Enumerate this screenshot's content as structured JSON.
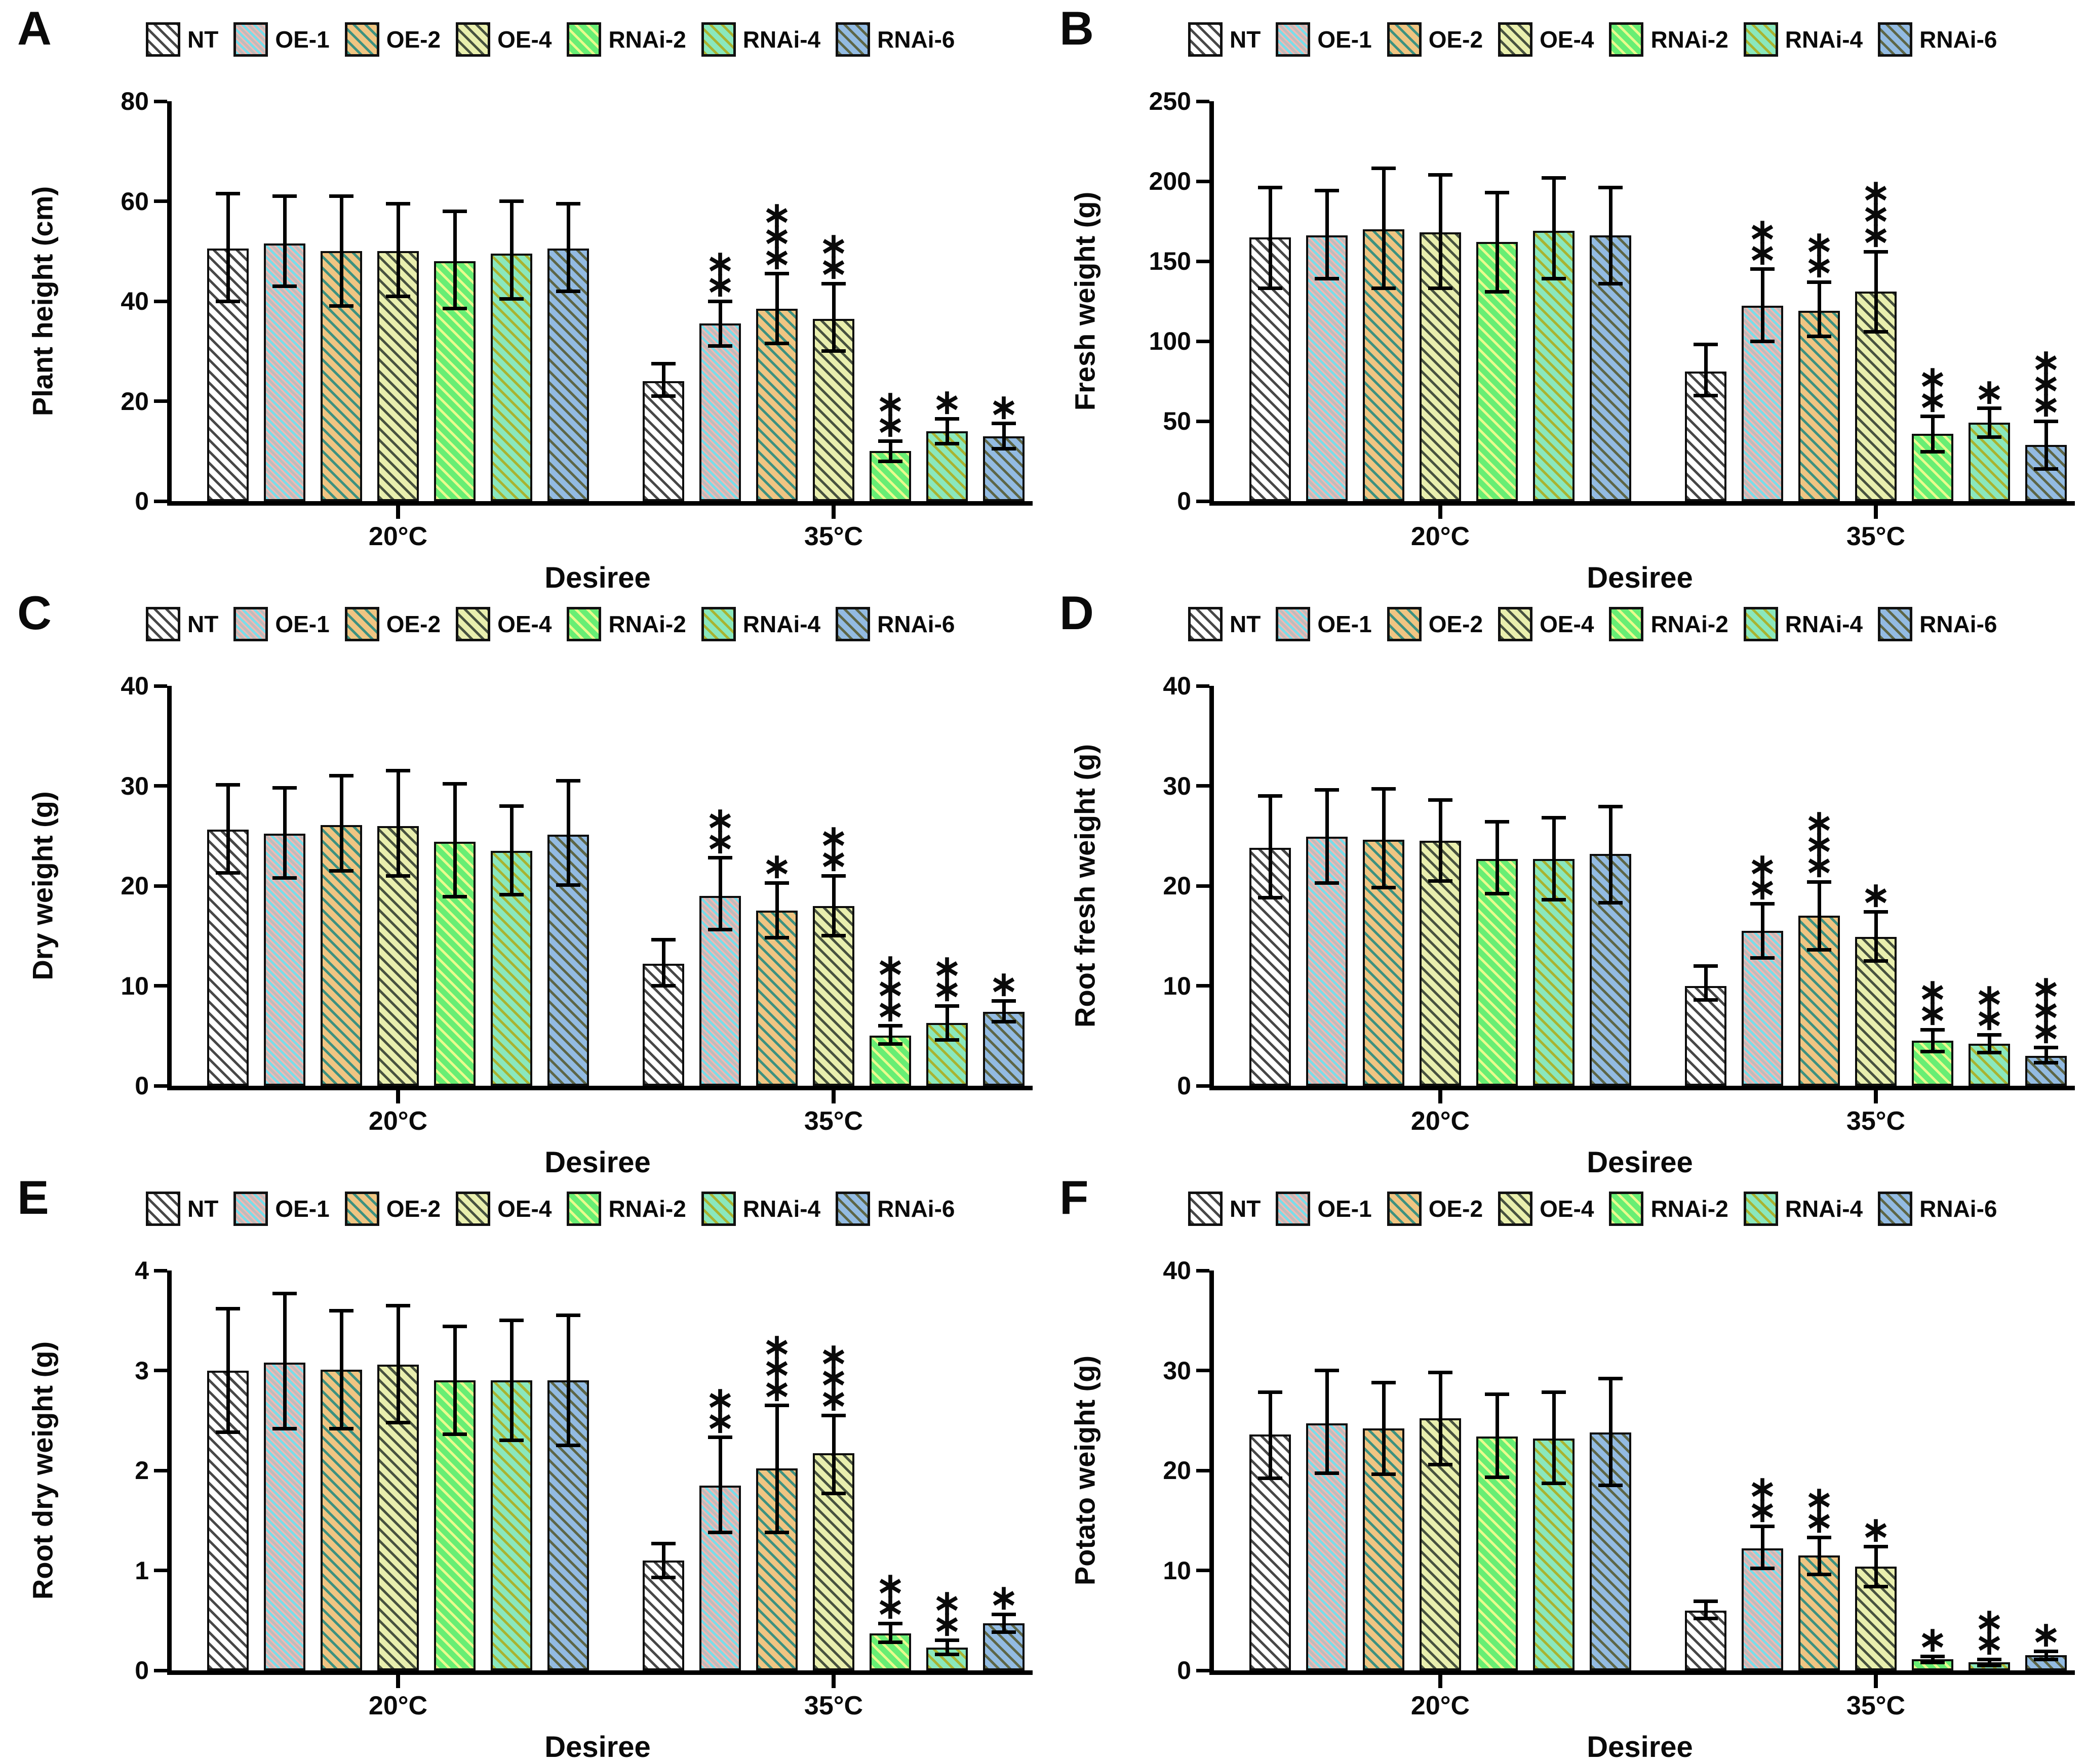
{
  "page": {
    "background": "#ffffff"
  },
  "legend": {
    "items": [
      {
        "label": "NT",
        "base": "#ffffff",
        "stripe": "#474747",
        "stripe2": null
      },
      {
        "label": "OE-1",
        "base": "#f3b8b3",
        "stripe": "#7adde9",
        "stripe2": "#bdbdbd"
      },
      {
        "label": "OE-2",
        "base": "#f0c582",
        "stripe": "#3d9180",
        "stripe2": null
      },
      {
        "label": "OE-4",
        "base": "#e9efae",
        "stripe": "#48523f",
        "stripe2": null
      },
      {
        "label": "RNAi-2",
        "base": "#68ee74",
        "stripe": "#e9fb8d",
        "stripe2": null
      },
      {
        "label": "RNAi-4",
        "base": "#8ae8bd",
        "stripe": "#a9b331",
        "stripe2": null
      },
      {
        "label": "RNAi-6",
        "base": "#93bbe2",
        "stripe": "#5d6647",
        "stripe2": null
      }
    ]
  },
  "chart_data": [
    {
      "type": "bar",
      "panel": "A",
      "ylabel": "Plant height (cm)",
      "xlabel": "Desiree",
      "ylim": [
        0,
        80
      ],
      "yticks": [
        0,
        20,
        40,
        60,
        80
      ],
      "categories": [
        "20°C",
        "35°C"
      ],
      "grid": false,
      "legend_position": "top",
      "series": [
        {
          "name": "NT",
          "values": [
            50.5,
            24.0
          ],
          "err_low": [
            40.0,
            21.0
          ],
          "err_high": [
            61.5,
            27.5
          ],
          "sig": [
            "",
            ""
          ]
        },
        {
          "name": "OE-1",
          "values": [
            51.5,
            35.5
          ],
          "err_low": [
            43.0,
            31.0
          ],
          "err_high": [
            61.0,
            40.0
          ],
          "sig": [
            "",
            "**"
          ]
        },
        {
          "name": "OE-2",
          "values": [
            50.0,
            38.5
          ],
          "err_low": [
            39.0,
            31.5
          ],
          "err_high": [
            61.0,
            45.5
          ],
          "sig": [
            "",
            "***"
          ]
        },
        {
          "name": "OE-4",
          "values": [
            50.0,
            36.5
          ],
          "err_low": [
            41.0,
            30.0
          ],
          "err_high": [
            59.5,
            43.5
          ],
          "sig": [
            "",
            "**"
          ]
        },
        {
          "name": "RNAi-2",
          "values": [
            48.0,
            10.0
          ],
          "err_low": [
            38.5,
            8.0
          ],
          "err_high": [
            58.0,
            12.0
          ],
          "sig": [
            "",
            "**"
          ]
        },
        {
          "name": "RNAi-4",
          "values": [
            49.5,
            14.0
          ],
          "err_low": [
            40.5,
            11.5
          ],
          "err_high": [
            60.0,
            16.5
          ],
          "sig": [
            "",
            "*"
          ]
        },
        {
          "name": "RNAi-6",
          "values": [
            50.5,
            13.0
          ],
          "err_low": [
            42.0,
            10.5
          ],
          "err_high": [
            59.5,
            15.5
          ],
          "sig": [
            "",
            "*"
          ]
        }
      ]
    },
    {
      "type": "bar",
      "panel": "B",
      "ylabel": "Fresh weight (g)",
      "xlabel": "Desiree",
      "ylim": [
        0,
        250
      ],
      "yticks": [
        0,
        50,
        100,
        150,
        200,
        250
      ],
      "categories": [
        "20°C",
        "35°C"
      ],
      "grid": false,
      "legend_position": "top",
      "series": [
        {
          "name": "NT",
          "values": [
            165,
            81
          ],
          "err_low": [
            133,
            66
          ],
          "err_high": [
            196,
            98
          ],
          "sig": [
            "",
            ""
          ]
        },
        {
          "name": "OE-1",
          "values": [
            166,
            122
          ],
          "err_low": [
            139,
            100
          ],
          "err_high": [
            194,
            145
          ],
          "sig": [
            "",
            "**"
          ]
        },
        {
          "name": "OE-2",
          "values": [
            170,
            119
          ],
          "err_low": [
            133,
            103
          ],
          "err_high": [
            208,
            137
          ],
          "sig": [
            "",
            "**"
          ]
        },
        {
          "name": "OE-4",
          "values": [
            168,
            131
          ],
          "err_low": [
            133,
            106
          ],
          "err_high": [
            204,
            156
          ],
          "sig": [
            "",
            "***"
          ]
        },
        {
          "name": "RNAi-2",
          "values": [
            162,
            42
          ],
          "err_low": [
            131,
            31
          ],
          "err_high": [
            193,
            53
          ],
          "sig": [
            "",
            "**"
          ]
        },
        {
          "name": "RNAi-4",
          "values": [
            169,
            49
          ],
          "err_low": [
            139,
            40
          ],
          "err_high": [
            202,
            58
          ],
          "sig": [
            "",
            "*"
          ]
        },
        {
          "name": "RNAi-6",
          "values": [
            166,
            35
          ],
          "err_low": [
            136,
            20
          ],
          "err_high": [
            196,
            50
          ],
          "sig": [
            "",
            "***"
          ]
        }
      ]
    },
    {
      "type": "bar",
      "panel": "C",
      "ylabel": "Dry weight (g)",
      "xlabel": "Desiree",
      "ylim": [
        0,
        40
      ],
      "yticks": [
        0,
        10,
        20,
        30,
        40
      ],
      "categories": [
        "20°C",
        "35°C"
      ],
      "grid": false,
      "legend_position": "top",
      "series": [
        {
          "name": "NT",
          "values": [
            25.6,
            12.2
          ],
          "err_low": [
            21.3,
            10.0
          ],
          "err_high": [
            30.1,
            14.6
          ],
          "sig": [
            "",
            ""
          ]
        },
        {
          "name": "OE-1",
          "values": [
            25.2,
            19.0
          ],
          "err_low": [
            20.8,
            15.6
          ],
          "err_high": [
            29.8,
            22.8
          ],
          "sig": [
            "",
            "**"
          ]
        },
        {
          "name": "OE-2",
          "values": [
            26.1,
            17.5
          ],
          "err_low": [
            21.5,
            14.8
          ],
          "err_high": [
            31.0,
            20.3
          ],
          "sig": [
            "",
            "*"
          ]
        },
        {
          "name": "OE-4",
          "values": [
            26.0,
            18.0
          ],
          "err_low": [
            21.0,
            15.0
          ],
          "err_high": [
            31.5,
            21.0
          ],
          "sig": [
            "",
            "**"
          ]
        },
        {
          "name": "RNAi-2",
          "values": [
            24.4,
            5.0
          ],
          "err_low": [
            18.9,
            4.2
          ],
          "err_high": [
            30.2,
            6.0
          ],
          "sig": [
            "",
            "***"
          ]
        },
        {
          "name": "RNAi-4",
          "values": [
            23.5,
            6.3
          ],
          "err_low": [
            19.1,
            4.6
          ],
          "err_high": [
            28.0,
            8.0
          ],
          "sig": [
            "",
            "**"
          ]
        },
        {
          "name": "RNAi-6",
          "values": [
            25.1,
            7.4
          ],
          "err_low": [
            20.1,
            6.4
          ],
          "err_high": [
            30.5,
            8.5
          ],
          "sig": [
            "",
            "*"
          ]
        }
      ]
    },
    {
      "type": "bar",
      "panel": "D",
      "ylabel": "Root fresh weight (g)",
      "xlabel": "Desiree",
      "ylim": [
        0,
        40
      ],
      "yticks": [
        0,
        10,
        20,
        30,
        40
      ],
      "categories": [
        "20°C",
        "35°C"
      ],
      "grid": false,
      "legend_position": "top",
      "series": [
        {
          "name": "NT",
          "values": [
            23.8,
            10.0
          ],
          "err_low": [
            18.8,
            8.6
          ],
          "err_high": [
            29.0,
            12.0
          ],
          "sig": [
            "",
            ""
          ]
        },
        {
          "name": "OE-1",
          "values": [
            24.9,
            15.5
          ],
          "err_low": [
            20.3,
            12.8
          ],
          "err_high": [
            29.6,
            18.2
          ],
          "sig": [
            "",
            "**"
          ]
        },
        {
          "name": "OE-2",
          "values": [
            24.6,
            17.0
          ],
          "err_low": [
            19.8,
            13.6
          ],
          "err_high": [
            29.7,
            20.4
          ],
          "sig": [
            "",
            "***"
          ]
        },
        {
          "name": "OE-4",
          "values": [
            24.5,
            14.9
          ],
          "err_low": [
            20.5,
            12.5
          ],
          "err_high": [
            28.6,
            17.4
          ],
          "sig": [
            "",
            "*"
          ]
        },
        {
          "name": "RNAi-2",
          "values": [
            22.7,
            4.5
          ],
          "err_low": [
            19.2,
            3.4
          ],
          "err_high": [
            26.4,
            5.6
          ],
          "sig": [
            "",
            "**"
          ]
        },
        {
          "name": "RNAi-4",
          "values": [
            22.7,
            4.2
          ],
          "err_low": [
            18.6,
            3.3
          ],
          "err_high": [
            26.8,
            5.1
          ],
          "sig": [
            "",
            "**"
          ]
        },
        {
          "name": "RNAi-6",
          "values": [
            23.2,
            3.0
          ],
          "err_low": [
            18.3,
            2.3
          ],
          "err_high": [
            27.9,
            3.8
          ],
          "sig": [
            "",
            "***"
          ]
        }
      ]
    },
    {
      "type": "bar",
      "panel": "E",
      "ylabel": "Root dry weight (g)",
      "xlabel": "Desiree",
      "ylim": [
        0,
        4
      ],
      "yticks": [
        0,
        1,
        2,
        3,
        4
      ],
      "categories": [
        "20°C",
        "35°C"
      ],
      "grid": false,
      "legend_position": "top",
      "series": [
        {
          "name": "NT",
          "values": [
            3.0,
            1.1
          ],
          "err_low": [
            2.38,
            0.93
          ],
          "err_high": [
            3.62,
            1.27
          ],
          "sig": [
            "",
            ""
          ]
        },
        {
          "name": "OE-1",
          "values": [
            3.08,
            1.85
          ],
          "err_low": [
            2.42,
            1.38
          ],
          "err_high": [
            3.77,
            2.33
          ],
          "sig": [
            "",
            "**"
          ]
        },
        {
          "name": "OE-2",
          "values": [
            3.01,
            2.02
          ],
          "err_low": [
            2.42,
            1.38
          ],
          "err_high": [
            3.6,
            2.65
          ],
          "sig": [
            "",
            "***"
          ]
        },
        {
          "name": "OE-4",
          "values": [
            3.06,
            2.17
          ],
          "err_low": [
            2.48,
            1.77
          ],
          "err_high": [
            3.65,
            2.55
          ],
          "sig": [
            "",
            "***"
          ]
        },
        {
          "name": "RNAi-2",
          "values": [
            2.9,
            0.37
          ],
          "err_low": [
            2.36,
            0.28
          ],
          "err_high": [
            3.44,
            0.47
          ],
          "sig": [
            "",
            "**"
          ]
        },
        {
          "name": "RNAi-4",
          "values": [
            2.9,
            0.23
          ],
          "err_low": [
            2.3,
            0.16
          ],
          "err_high": [
            3.5,
            0.3
          ],
          "sig": [
            "",
            "**"
          ]
        },
        {
          "name": "RNAi-6",
          "values": [
            2.9,
            0.47
          ],
          "err_low": [
            2.25,
            0.38
          ],
          "err_high": [
            3.55,
            0.56
          ],
          "sig": [
            "",
            "*"
          ]
        }
      ]
    },
    {
      "type": "bar",
      "panel": "F",
      "ylabel": "Potato weight (g)",
      "xlabel": "Desiree",
      "ylim": [
        0,
        40
      ],
      "yticks": [
        0,
        10,
        20,
        30,
        40
      ],
      "categories": [
        "20°C",
        "35°C"
      ],
      "grid": false,
      "legend_position": "top",
      "series": [
        {
          "name": "NT",
          "values": [
            23.6,
            6.0
          ],
          "err_low": [
            19.2,
            5.2
          ],
          "err_high": [
            27.8,
            6.9
          ],
          "sig": [
            "",
            ""
          ]
        },
        {
          "name": "OE-1",
          "values": [
            24.7,
            12.2
          ],
          "err_low": [
            19.7,
            10.2
          ],
          "err_high": [
            30.0,
            14.4
          ],
          "sig": [
            "",
            "**"
          ]
        },
        {
          "name": "OE-2",
          "values": [
            24.2,
            11.5
          ],
          "err_low": [
            19.6,
            9.6
          ],
          "err_high": [
            28.8,
            13.3
          ],
          "sig": [
            "",
            "**"
          ]
        },
        {
          "name": "OE-4",
          "values": [
            25.2,
            10.4
          ],
          "err_low": [
            20.6,
            8.4
          ],
          "err_high": [
            29.8,
            12.4
          ],
          "sig": [
            "",
            "*"
          ]
        },
        {
          "name": "RNAi-2",
          "values": [
            23.4,
            1.1
          ],
          "err_low": [
            19.3,
            0.8
          ],
          "err_high": [
            27.6,
            1.4
          ],
          "sig": [
            "",
            "*"
          ]
        },
        {
          "name": "RNAi-4",
          "values": [
            23.2,
            0.8
          ],
          "err_low": [
            18.7,
            0.5
          ],
          "err_high": [
            27.8,
            1.1
          ],
          "sig": [
            "",
            "**"
          ]
        },
        {
          "name": "RNAi-6",
          "values": [
            23.8,
            1.5
          ],
          "err_low": [
            18.5,
            1.1
          ],
          "err_high": [
            29.2,
            1.9
          ],
          "sig": [
            "",
            "*"
          ]
        }
      ]
    }
  ]
}
